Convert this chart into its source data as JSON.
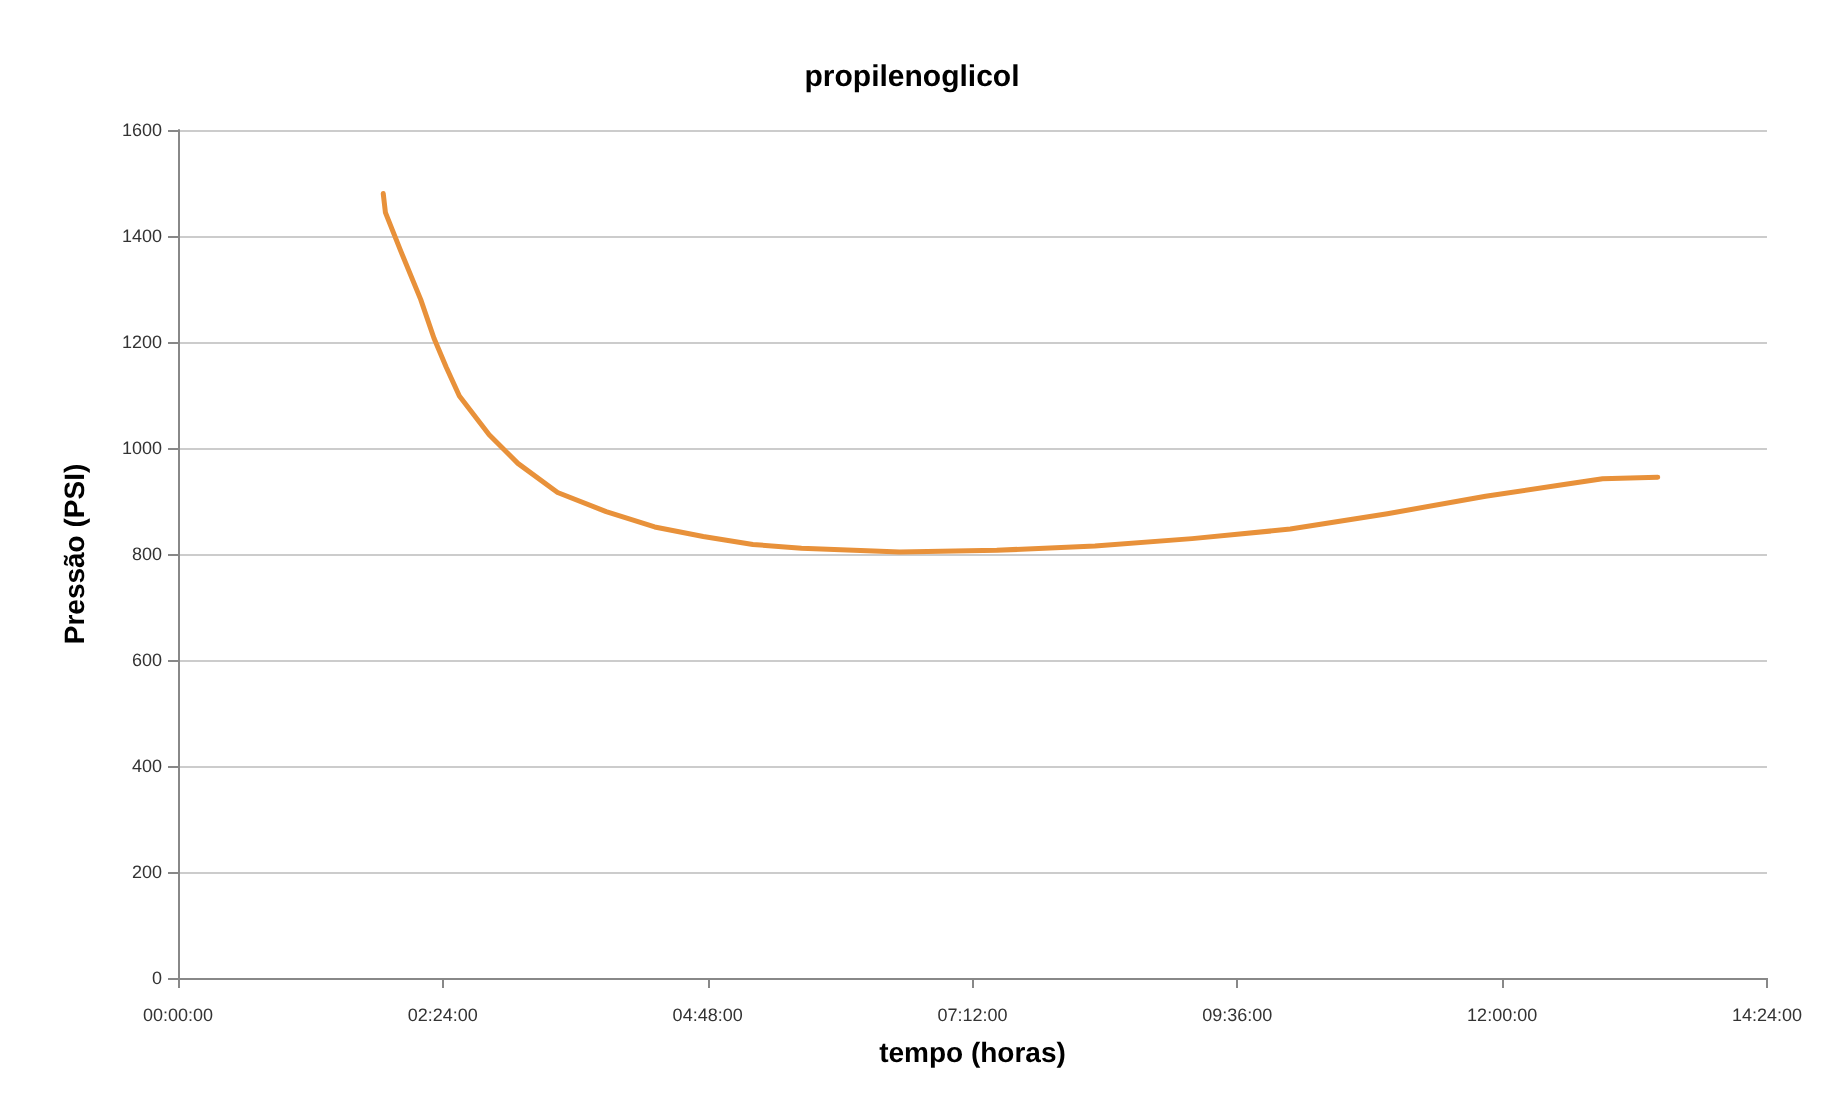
{
  "chart_data": {
    "type": "line",
    "title": "propilenoglicol",
    "xlabel": "tempo (horas)",
    "ylabel": "Pressão (PSI)",
    "x": [
      1.86,
      1.88,
      2.02,
      2.2,
      2.32,
      2.43,
      2.55,
      2.82,
      3.08,
      3.44,
      3.88,
      4.32,
      4.76,
      5.21,
      5.65,
      6.54,
      7.42,
      8.31,
      9.19,
      10.08,
      10.96,
      11.85,
      12.56,
      12.91,
      13.41
    ],
    "series": [
      {
        "color": "#e8913a",
        "values": [
          1480,
          1444,
          1371,
          1280,
          1207,
          1153,
          1098,
          1025,
          971,
          916,
          880,
          851,
          833,
          818,
          811,
          804,
          807,
          815,
          829,
          847,
          876,
          909,
          931,
          942,
          945
        ]
      }
    ],
    "xlim": [
      0,
      14.4
    ],
    "xticks": [
      {
        "value": 0,
        "label": "00:00:00"
      },
      {
        "value": 2.4,
        "label": "02:24:00"
      },
      {
        "value": 4.8,
        "label": "04:48:00"
      },
      {
        "value": 7.2,
        "label": "07:12:00"
      },
      {
        "value": 9.6,
        "label": "09:36:00"
      },
      {
        "value": 12,
        "label": "12:00:00"
      },
      {
        "value": 14.4,
        "label": "14:24:00"
      }
    ],
    "ylim": [
      0,
      1600
    ],
    "yticks": [
      0,
      200,
      400,
      600,
      800,
      1000,
      1200,
      1400,
      1600
    ],
    "grid": "y",
    "marker": "none",
    "line_style": "solid"
  }
}
